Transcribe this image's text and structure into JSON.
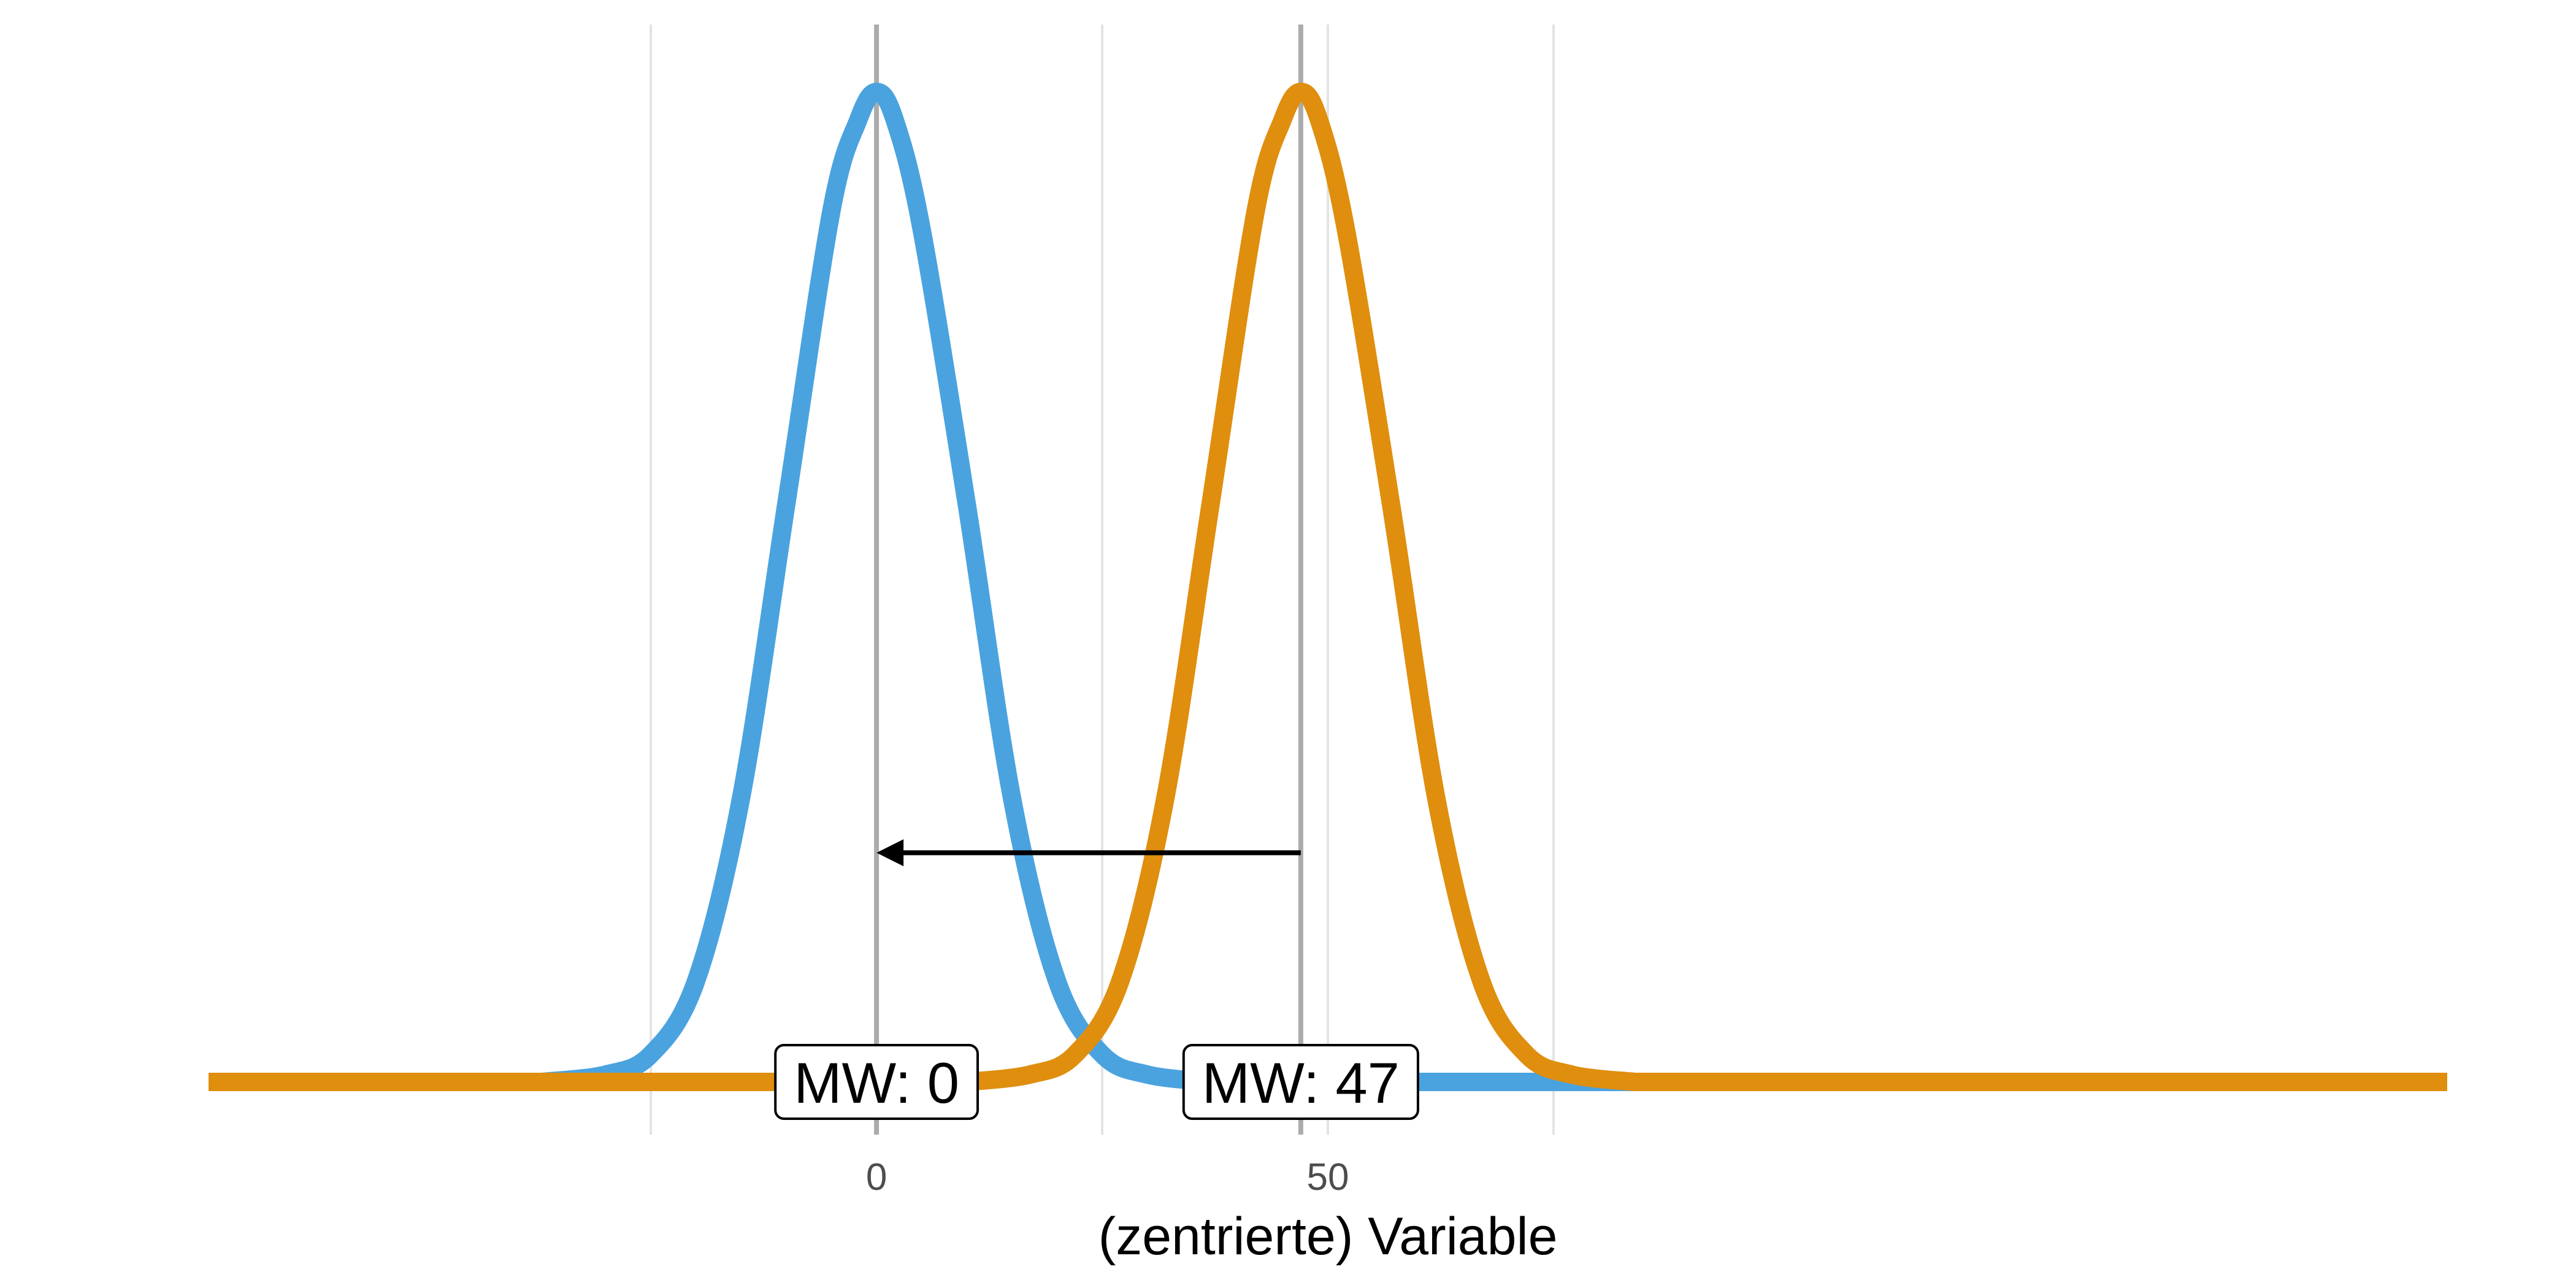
{
  "chart_data": {
    "type": "line",
    "xlabel": "(zentrierte) Variable",
    "ylabel": "",
    "xlim": [
      -74,
      174
    ],
    "ylim": [
      0,
      0.055
    ],
    "x_ticks": [
      0,
      50
    ],
    "grid": {
      "major_x": [
        -25,
        25,
        75
      ],
      "tick_x": [
        0,
        50
      ],
      "horizontal": false
    },
    "colors": {
      "blue": "#4aa3df",
      "orange": "#df8e0e",
      "meanline": "#ababab",
      "grid": "#e3e3e3"
    },
    "series": [
      {
        "color": "blue",
        "x": [
          -37,
          -30,
          -25,
          -20,
          -15,
          -10,
          -5,
          -2,
          0,
          2,
          5,
          10,
          15,
          20,
          25,
          30,
          37
        ],
        "y": [
          0,
          0.0004,
          0.0015,
          0.0055,
          0.0155,
          0.0315,
          0.0475,
          0.0525,
          0.054,
          0.0525,
          0.0465,
          0.0315,
          0.0155,
          0.0055,
          0.0015,
          0.0004,
          0
        ]
      },
      {
        "color": "orange",
        "x": [
          10,
          17,
          22,
          27,
          32,
          37,
          42,
          45,
          47,
          49,
          52,
          57,
          62,
          67,
          72,
          77,
          84
        ],
        "y": [
          0,
          0.0004,
          0.0015,
          0.0055,
          0.0155,
          0.0315,
          0.0475,
          0.0525,
          0.054,
          0.0525,
          0.0465,
          0.0315,
          0.0155,
          0.0055,
          0.0015,
          0.0004,
          0
        ]
      }
    ],
    "mean_lines": [
      {
        "x": 0,
        "label": "MW: 0"
      },
      {
        "x": 47,
        "label": "MW: 47"
      }
    ],
    "arrow": {
      "from_x": 47,
      "to_x": 0,
      "y": 0.0125
    }
  }
}
